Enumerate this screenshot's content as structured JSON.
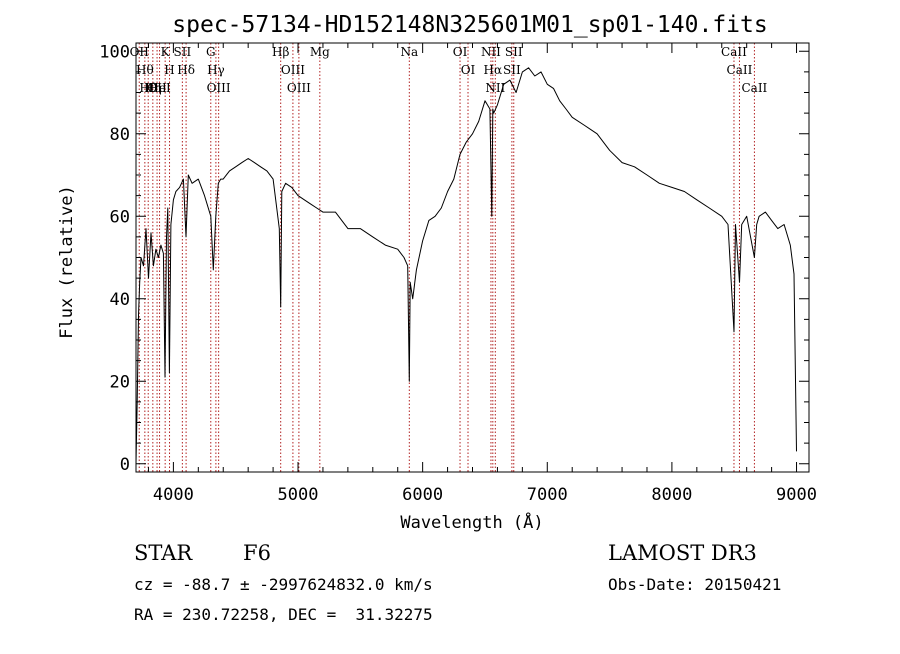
{
  "chart_data": {
    "type": "line",
    "title": "spec-57134-HD152148N325601M01_sp01-140.fits",
    "xlabel": "Wavelength (Å)",
    "ylabel": "Flux (relative)",
    "xlim": [
      3700,
      9100
    ],
    "ylim": [
      -2,
      102
    ],
    "xticks": [
      4000,
      5000,
      6000,
      7000,
      8000,
      9000
    ],
    "yticks": [
      0,
      20,
      40,
      60,
      80,
      100
    ],
    "grid": false,
    "line_color": "#000000",
    "marker_color": "#b22222",
    "series": [
      {
        "x": [
          3700,
          3710,
          3720,
          3730,
          3740,
          3760,
          3780,
          3800,
          3820,
          3840,
          3860,
          3880,
          3900,
          3920,
          3933,
          3945,
          3955,
          3968,
          3980,
          4000,
          4020,
          4050,
          4080,
          4101,
          4120,
          4150,
          4200,
          4250,
          4300,
          4320,
          4340,
          4360,
          4380,
          4400,
          4450,
          4500,
          4550,
          4600,
          4650,
          4700,
          4750,
          4800,
          4850,
          4861,
          4870,
          4900,
          4950,
          5000,
          5050,
          5100,
          5150,
          5200,
          5300,
          5400,
          5500,
          5600,
          5700,
          5800,
          5850,
          5880,
          5893,
          5900,
          5920,
          5950,
          6000,
          6050,
          6100,
          6150,
          6200,
          6250,
          6300,
          6350,
          6400,
          6450,
          6500,
          6540,
          6555,
          6563,
          6570,
          6600,
          6650,
          6700,
          6750,
          6800,
          6850,
          6900,
          6950,
          7000,
          7050,
          7100,
          7150,
          7200,
          7300,
          7400,
          7500,
          7600,
          7700,
          7800,
          7900,
          8000,
          8100,
          8200,
          8300,
          8400,
          8450,
          8498,
          8510,
          8542,
          8560,
          8600,
          8662,
          8680,
          8700,
          8750,
          8800,
          8850,
          8900,
          8950,
          8980,
          9000
        ],
        "y": [
          0,
          15,
          36,
          44,
          50,
          48,
          57,
          45,
          56,
          48,
          52,
          50,
          53,
          51,
          21,
          55,
          62,
          22,
          58,
          64,
          66,
          67,
          69,
          55,
          70,
          68,
          69,
          65,
          60,
          47,
          60,
          68,
          69,
          69,
          71,
          72,
          73,
          74,
          73,
          72,
          71,
          69,
          57,
          38,
          66,
          68,
          67,
          65,
          64,
          63,
          62,
          61,
          61,
          57,
          57,
          55,
          53,
          52,
          50,
          48,
          20,
          44,
          40,
          47,
          54,
          59,
          60,
          62,
          66,
          69,
          75,
          78,
          80,
          83,
          88,
          86,
          60,
          86,
          85,
          87,
          92,
          93,
          90,
          95,
          96,
          94,
          95,
          92,
          91,
          88,
          86,
          84,
          82,
          80,
          76,
          73,
          72,
          70,
          68,
          67,
          66,
          64,
          62,
          60,
          58,
          32,
          58,
          44,
          58,
          60,
          50,
          58,
          60,
          61,
          59,
          57,
          58,
          53,
          46,
          3
        ]
      }
    ],
    "line_markers": [
      {
        "x": 3726,
        "label": "OII"
      },
      {
        "x": 3771,
        "label": "Hθ"
      },
      {
        "x": 3798,
        "label": "Hθ"
      },
      {
        "x": 3835,
        "label": "Hη"
      },
      {
        "x": 3869,
        "label": "OII"
      },
      {
        "x": 3889,
        "label": "HeI"
      },
      {
        "x": 3934,
        "label": "K"
      },
      {
        "x": 3969,
        "label": "H"
      },
      {
        "x": 4072,
        "label": "SII"
      },
      {
        "x": 4102,
        "label": "Hδ"
      },
      {
        "x": 4300,
        "label": "G"
      },
      {
        "x": 4341,
        "label": "Hγ"
      },
      {
        "x": 4363,
        "label": "OIII"
      },
      {
        "x": 4861,
        "label": "Hβ"
      },
      {
        "x": 4959,
        "label": "OIII"
      },
      {
        "x": 5007,
        "label": "OIII"
      },
      {
        "x": 5175,
        "label": "Mg"
      },
      {
        "x": 5893,
        "label": "Na"
      },
      {
        "x": 6300,
        "label": "OI"
      },
      {
        "x": 6364,
        "label": "OI"
      },
      {
        "x": 6548,
        "label": "NII"
      },
      {
        "x": 6563,
        "label": "Hα"
      },
      {
        "x": 6583,
        "label": "NII"
      },
      {
        "x": 6716,
        "label": "SII"
      },
      {
        "x": 6731,
        "label": "SII"
      },
      {
        "x": 8498,
        "label": "CaII"
      },
      {
        "x": 8542,
        "label": "CaII"
      },
      {
        "x": 8662,
        "label": "CaII"
      }
    ]
  },
  "footer": {
    "class_label": "STAR",
    "subclass": "F6",
    "survey": "LAMOST DR3",
    "cz_line": "cz = -88.7 ± -2997624832.0 km/s",
    "obs_date": "Obs-Date: 20150421",
    "coords": "RA = 230.72258, DEC =  31.32275"
  }
}
